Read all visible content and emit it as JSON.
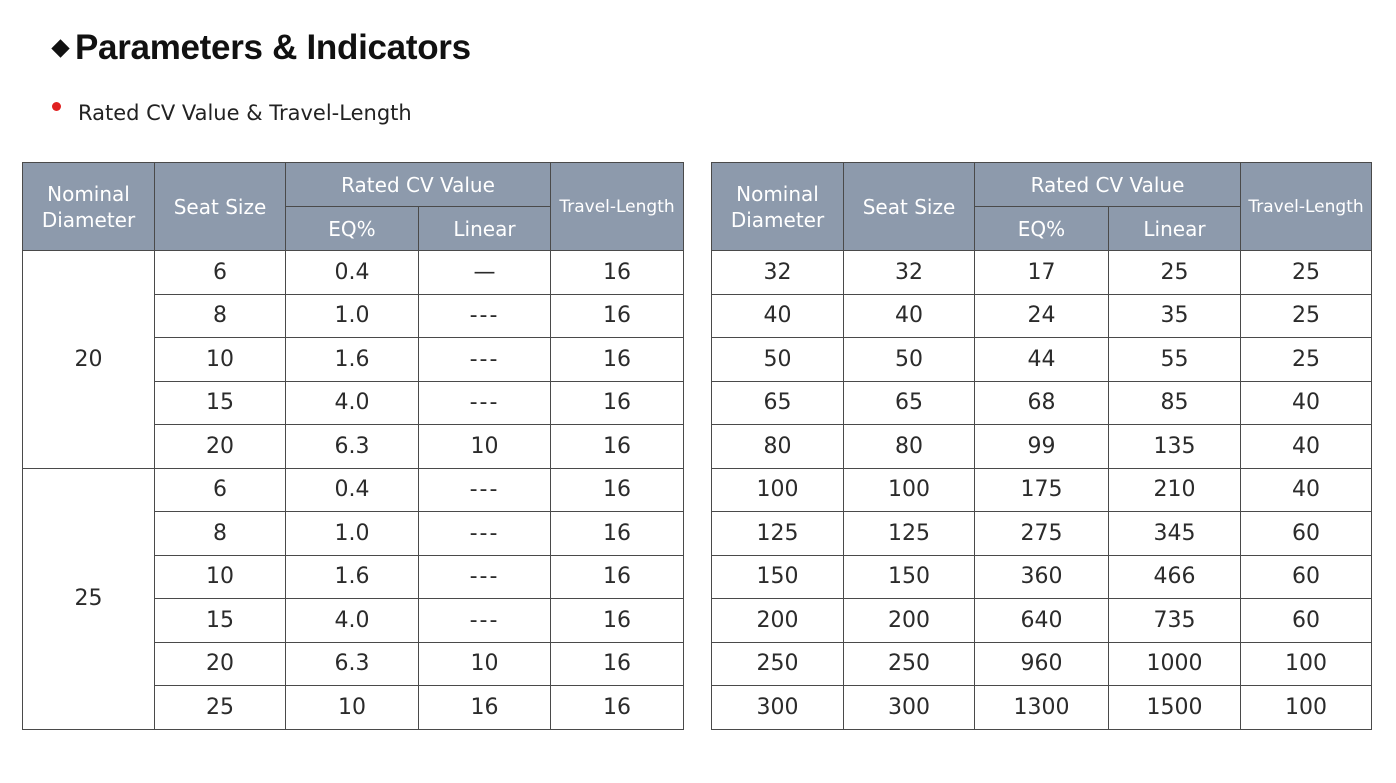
{
  "heading": {
    "title": "Parameters & Indicators",
    "subtitle": "Rated CV Value & Travel-Length"
  },
  "colors": {
    "header_bg": "#8d9aac",
    "bullet_red": "#e02020"
  },
  "table_left": {
    "headers": {
      "nominal_diameter": "Nominal Diameter",
      "seat_size": "Seat Size",
      "rated_cv": "Rated CV Value",
      "eq": "EQ%",
      "linear": "Linear",
      "travel": "Travel-Length"
    },
    "groups": [
      {
        "nominal": "20",
        "rows": [
          {
            "seat": "6",
            "eq": "0.4",
            "linear": "—",
            "travel": "16"
          },
          {
            "seat": "8",
            "eq": "1.0",
            "linear": "---",
            "travel": "16"
          },
          {
            "seat": "10",
            "eq": "1.6",
            "linear": "---",
            "travel": "16"
          },
          {
            "seat": "15",
            "eq": "4.0",
            "linear": "---",
            "travel": "16"
          },
          {
            "seat": "20",
            "eq": "6.3",
            "linear": "10",
            "travel": "16"
          }
        ]
      },
      {
        "nominal": "25",
        "rows": [
          {
            "seat": "6",
            "eq": "0.4",
            "linear": "---",
            "travel": "16"
          },
          {
            "seat": "8",
            "eq": "1.0",
            "linear": "---",
            "travel": "16"
          },
          {
            "seat": "10",
            "eq": "1.6",
            "linear": "---",
            "travel": "16"
          },
          {
            "seat": "15",
            "eq": "4.0",
            "linear": "---",
            "travel": "16"
          },
          {
            "seat": "20",
            "eq": "6.3",
            "linear": "10",
            "travel": "16"
          },
          {
            "seat": "25",
            "eq": "10",
            "linear": "16",
            "travel": "16"
          }
        ]
      }
    ]
  },
  "table_right": {
    "headers": {
      "nominal_diameter": "Nominal Diameter",
      "seat_size": "Seat Size",
      "rated_cv": "Rated CV Value",
      "eq": "EQ%",
      "linear": "Linear",
      "travel": "Travel-Length"
    },
    "rows": [
      {
        "nominal": "32",
        "seat": "32",
        "eq": "17",
        "linear": "25",
        "travel": "25"
      },
      {
        "nominal": "40",
        "seat": "40",
        "eq": "24",
        "linear": "35",
        "travel": "25"
      },
      {
        "nominal": "50",
        "seat": "50",
        "eq": "44",
        "linear": "55",
        "travel": "25"
      },
      {
        "nominal": "65",
        "seat": "65",
        "eq": "68",
        "linear": "85",
        "travel": "40"
      },
      {
        "nominal": "80",
        "seat": "80",
        "eq": "99",
        "linear": "135",
        "travel": "40"
      },
      {
        "nominal": "100",
        "seat": "100",
        "eq": "175",
        "linear": "210",
        "travel": "40"
      },
      {
        "nominal": "125",
        "seat": "125",
        "eq": "275",
        "linear": "345",
        "travel": "60"
      },
      {
        "nominal": "150",
        "seat": "150",
        "eq": "360",
        "linear": "466",
        "travel": "60"
      },
      {
        "nominal": "200",
        "seat": "200",
        "eq": "640",
        "linear": "735",
        "travel": "60"
      },
      {
        "nominal": "250",
        "seat": "250",
        "eq": "960",
        "linear": "1000",
        "travel": "100"
      },
      {
        "nominal": "300",
        "seat": "300",
        "eq": "1300",
        "linear": "1500",
        "travel": "100"
      }
    ]
  }
}
